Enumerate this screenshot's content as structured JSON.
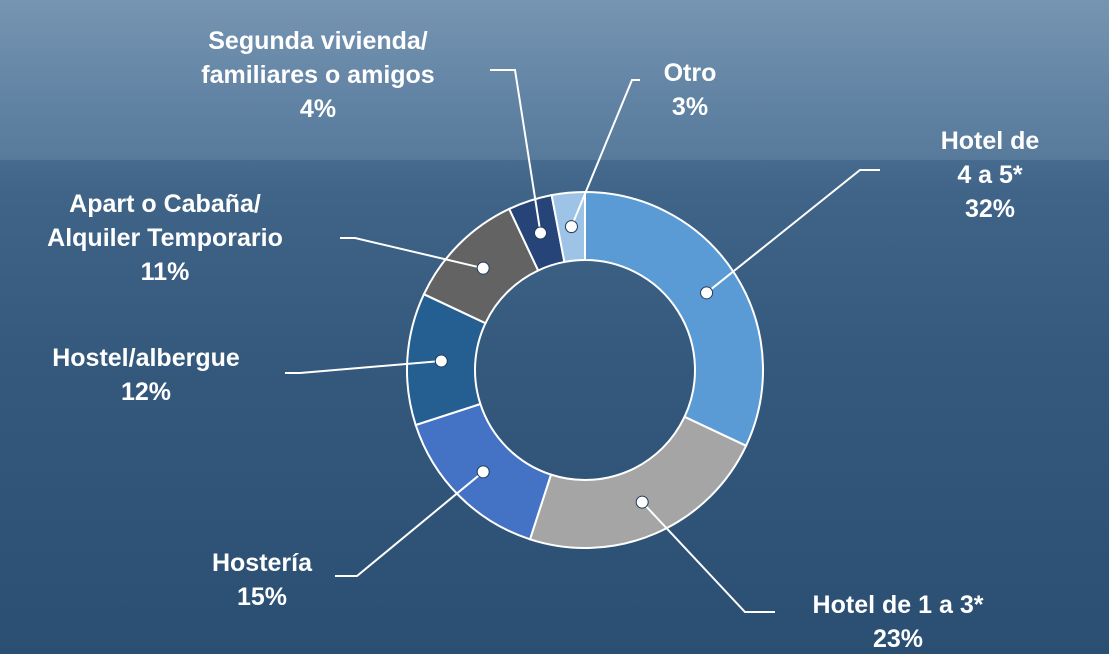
{
  "chart_data": {
    "type": "donut",
    "categories": [
      "Hotel de 4 a 5*",
      "Hotel de 1 a 3*",
      "Hostería",
      "Hostel/albergue",
      "Apart o Cabaña/\nAlquiler Temporario",
      "Segunda vivienda/\nfamiliares o amigos",
      "Otro"
    ],
    "values": [
      32,
      23,
      15,
      12,
      11,
      4,
      3
    ],
    "value_labels": [
      "32%",
      "23%",
      "15%",
      "12%",
      "11%",
      "4%",
      "3%"
    ],
    "colors": [
      "#5b9bd5",
      "#a5a5a5",
      "#4472c4",
      "#255e91",
      "#636363",
      "#264478",
      "#9dc3e6"
    ]
  }
}
